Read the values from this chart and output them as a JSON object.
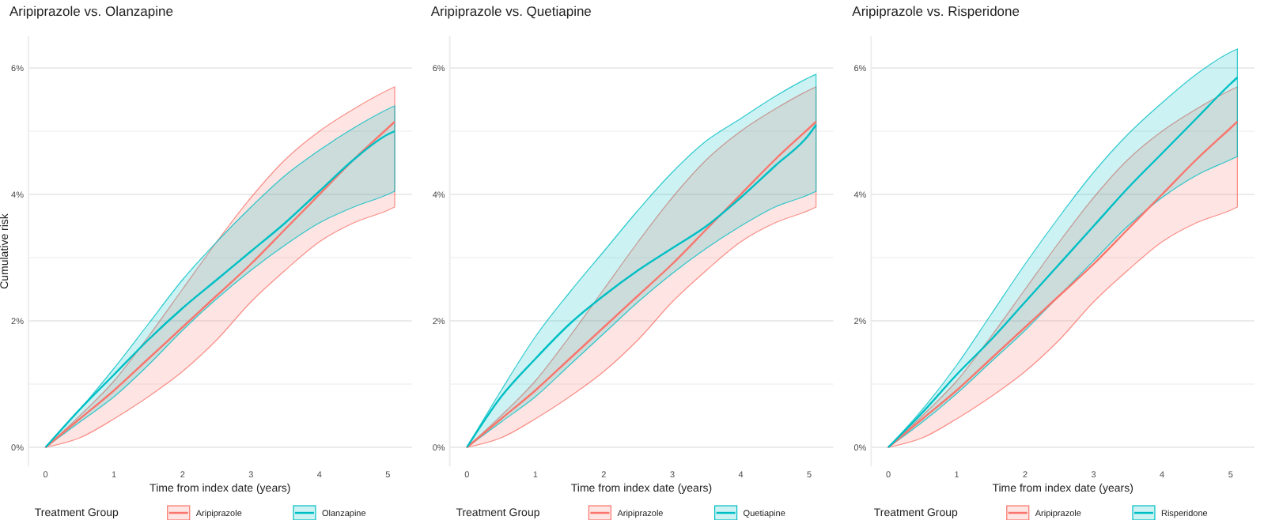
{
  "chart_data": [
    {
      "type": "line",
      "title": "Aripiprazole vs.  Olanzapine",
      "xlabel": "Time from index date (years)",
      "ylabel": "Cumulative risk",
      "legend_title": "Treatment Group",
      "legend": "bottom",
      "grid": "y",
      "x": [
        0,
        0.5,
        1,
        1.5,
        2,
        2.5,
        3,
        3.5,
        4,
        4.5,
        5,
        5.1
      ],
      "xlim": [
        -0.25,
        5.35
      ],
      "xticks": [
        0,
        1,
        2,
        3,
        4,
        5
      ],
      "ylim": [
        -0.3,
        6.5
      ],
      "yticks": [
        {
          "value": 0,
          "label": "0%"
        },
        {
          "value": 1,
          "label": null
        },
        {
          "value": 2,
          "label": "2%"
        },
        {
          "value": 3,
          "label": null
        },
        {
          "value": 4,
          "label": "4%"
        },
        {
          "value": 5,
          "label": null
        },
        {
          "value": 6,
          "label": "6%"
        }
      ],
      "series": [
        {
          "name": "Aripiprazole",
          "color": "#f8766d",
          "values": [
            0,
            0.45,
            0.9,
            1.4,
            1.9,
            2.4,
            2.9,
            3.45,
            4.0,
            4.55,
            5.05,
            5.15
          ],
          "lower": [
            0,
            0.15,
            0.45,
            0.8,
            1.2,
            1.7,
            2.3,
            2.8,
            3.25,
            3.55,
            3.75,
            3.8
          ],
          "upper": [
            0,
            0.5,
            1.05,
            1.75,
            2.5,
            3.25,
            3.95,
            4.55,
            5.0,
            5.35,
            5.65,
            5.7
          ]
        },
        {
          "name": "Olanzapine",
          "color": "#00bfc4",
          "values": [
            0,
            0.6,
            1.15,
            1.7,
            2.2,
            2.65,
            3.1,
            3.55,
            4.05,
            4.55,
            4.95,
            5.0
          ],
          "lower": [
            0,
            0.4,
            0.8,
            1.3,
            1.85,
            2.35,
            2.8,
            3.2,
            3.55,
            3.8,
            4.0,
            4.05
          ],
          "upper": [
            0,
            0.6,
            1.25,
            1.95,
            2.65,
            3.25,
            3.8,
            4.3,
            4.7,
            5.05,
            5.35,
            5.4
          ]
        }
      ]
    },
    {
      "type": "line",
      "title": "Aripiprazole vs.  Quetiapine",
      "xlabel": "Time from index date (years)",
      "legend_title": "Treatment Group",
      "legend": "bottom",
      "grid": "y",
      "x": [
        0,
        0.5,
        1,
        1.5,
        2,
        2.5,
        3,
        3.5,
        4,
        4.5,
        5,
        5.1
      ],
      "xlim": [
        -0.25,
        5.35
      ],
      "xticks": [
        0,
        1,
        2,
        3,
        4,
        5
      ],
      "ylim": [
        -0.3,
        6.5
      ],
      "yticks": [
        {
          "value": 0,
          "label": "0%"
        },
        {
          "value": 1,
          "label": null
        },
        {
          "value": 2,
          "label": "2%"
        },
        {
          "value": 3,
          "label": null
        },
        {
          "value": 4,
          "label": "4%"
        },
        {
          "value": 5,
          "label": null
        },
        {
          "value": 6,
          "label": "6%"
        }
      ],
      "series": [
        {
          "name": "Aripiprazole",
          "color": "#f8766d",
          "values": [
            0,
            0.45,
            0.9,
            1.4,
            1.9,
            2.4,
            2.9,
            3.45,
            4.0,
            4.55,
            5.05,
            5.15
          ],
          "lower": [
            0,
            0.15,
            0.45,
            0.8,
            1.2,
            1.7,
            2.3,
            2.8,
            3.25,
            3.55,
            3.75,
            3.8
          ],
          "upper": [
            0,
            0.5,
            1.05,
            1.75,
            2.5,
            3.25,
            3.95,
            4.55,
            5.0,
            5.35,
            5.65,
            5.7
          ]
        },
        {
          "name": "Quetiapine",
          "color": "#00bfc4",
          "values": [
            0,
            0.8,
            1.4,
            1.95,
            2.4,
            2.8,
            3.15,
            3.5,
            3.95,
            4.45,
            4.95,
            5.1
          ],
          "lower": [
            0,
            0.4,
            0.8,
            1.3,
            1.8,
            2.3,
            2.75,
            3.15,
            3.5,
            3.8,
            4.0,
            4.05
          ],
          "upper": [
            0,
            0.9,
            1.75,
            2.45,
            3.1,
            3.75,
            4.35,
            4.85,
            5.2,
            5.55,
            5.85,
            5.9
          ]
        }
      ]
    },
    {
      "type": "line",
      "title": "Aripiprazole vs.  Risperidone",
      "xlabel": "Time from index date (years)",
      "legend_title": "Treatment Group",
      "legend": "bottom",
      "grid": "y",
      "x": [
        0,
        0.5,
        1,
        1.5,
        2,
        2.5,
        3,
        3.5,
        4,
        4.5,
        5,
        5.1
      ],
      "xlim": [
        -0.25,
        5.35
      ],
      "xticks": [
        0,
        1,
        2,
        3,
        4,
        5
      ],
      "ylim": [
        -0.3,
        6.5
      ],
      "yticks": [
        {
          "value": 0,
          "label": "0%"
        },
        {
          "value": 1,
          "label": null
        },
        {
          "value": 2,
          "label": "2%"
        },
        {
          "value": 3,
          "label": null
        },
        {
          "value": 4,
          "label": "4%"
        },
        {
          "value": 5,
          "label": null
        },
        {
          "value": 6,
          "label": "6%"
        }
      ],
      "series": [
        {
          "name": "Aripiprazole",
          "color": "#f8766d",
          "values": [
            0,
            0.45,
            0.9,
            1.4,
            1.9,
            2.4,
            2.9,
            3.45,
            4.0,
            4.55,
            5.05,
            5.15
          ],
          "lower": [
            0,
            0.15,
            0.45,
            0.8,
            1.2,
            1.7,
            2.3,
            2.8,
            3.25,
            3.55,
            3.75,
            3.8
          ],
          "upper": [
            0,
            0.5,
            1.05,
            1.75,
            2.5,
            3.25,
            3.95,
            4.55,
            5.0,
            5.35,
            5.65,
            5.7
          ]
        },
        {
          "name": "Risperidone",
          "color": "#00bfc4",
          "values": [
            0,
            0.55,
            1.15,
            1.7,
            2.3,
            2.9,
            3.5,
            4.1,
            4.65,
            5.2,
            5.75,
            5.85
          ],
          "lower": [
            0,
            0.4,
            0.85,
            1.35,
            1.85,
            2.4,
            2.95,
            3.5,
            3.95,
            4.3,
            4.55,
            4.6
          ],
          "upper": [
            0,
            0.6,
            1.3,
            2.1,
            2.9,
            3.65,
            4.35,
            4.95,
            5.45,
            5.9,
            6.25,
            6.3
          ]
        }
      ]
    }
  ]
}
